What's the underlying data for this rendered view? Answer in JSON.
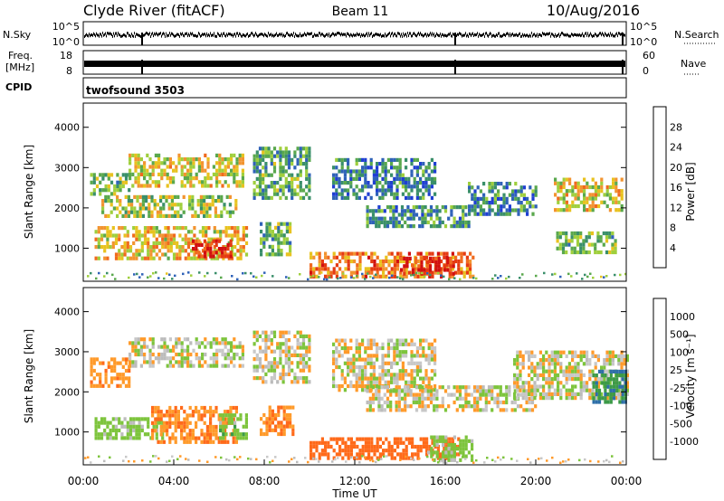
{
  "header": {
    "title": "Clyde River (fitACF)",
    "beam": "Beam 11",
    "date": "10/Aug/2016"
  },
  "strips": {
    "nsky": {
      "label": "N.Sky",
      "tick_top": "10^5",
      "tick_bottom": "10^0"
    },
    "nsearch": {
      "label": "N.Search",
      "tick_top": "10^5",
      "tick_bottom": "10^0"
    },
    "freq": {
      "label_line1": "Freq.",
      "label_line2": "[MHz]",
      "tick_top": "18",
      "tick_bottom": "8"
    },
    "nave": {
      "label": "Nave",
      "tick_top": "60",
      "tick_bottom": "0"
    },
    "cpid": {
      "label": "CPID",
      "value": "twofsound 3503"
    }
  },
  "colors": {
    "power": [
      "#1f3fd2",
      "#2f62b8",
      "#3a8f6a",
      "#5aa84d",
      "#9fcf3d",
      "#e8c21f",
      "#f29430",
      "#f06a1e",
      "#e53a12",
      "#d11010"
    ],
    "velocity": [
      "#ff1a10",
      "#ff6a1a",
      "#ff9a2a",
      "#c8c8c8",
      "#bcbcbc",
      "#7dc43c",
      "#3c9a48",
      "#2e6fa8",
      "#1f3fd2"
    ]
  },
  "chart_data": [
    {
      "type": "heatmap",
      "panel": "power",
      "ylabel": "Slant Range [km]",
      "xlabel": "",
      "ylim": [
        180,
        4600
      ],
      "xlim": [
        "00:00",
        "24:00"
      ],
      "yticks": [
        "1000",
        "2000",
        "3000",
        "4000"
      ],
      "colorbar": {
        "label": "Power [dB]",
        "ticks": [
          "4",
          "8",
          "12",
          "16",
          "20",
          "24",
          "28"
        ]
      },
      "regions": [
        {
          "t": [
            0.3,
            2.0
          ],
          "r": [
            2300,
            2800
          ],
          "level": 12
        },
        {
          "t": [
            2.0,
            7.0
          ],
          "r": [
            2500,
            3300
          ],
          "level": 16
        },
        {
          "t": [
            0.8,
            6.8
          ],
          "r": [
            1750,
            2250
          ],
          "level": 14
        },
        {
          "t": [
            0.5,
            7.2
          ],
          "r": [
            700,
            1500
          ],
          "level": 18
        },
        {
          "t": [
            4.8,
            6.5
          ],
          "r": [
            750,
            1200
          ],
          "level": 27
        },
        {
          "t": [
            7.5,
            10.0
          ],
          "r": [
            2200,
            3500
          ],
          "level": 10
        },
        {
          "t": [
            7.8,
            9.2
          ],
          "r": [
            800,
            1600
          ],
          "level": 11
        },
        {
          "t": [
            10.0,
            17.2
          ],
          "r": [
            250,
            850
          ],
          "level": 22
        },
        {
          "t": [
            14.0,
            16.4
          ],
          "r": [
            320,
            700
          ],
          "level": 28
        },
        {
          "t": [
            11.0,
            15.5
          ],
          "r": [
            2200,
            3200
          ],
          "level": 7
        },
        {
          "t": [
            12.5,
            17.0
          ],
          "r": [
            1500,
            2000
          ],
          "level": 9
        },
        {
          "t": [
            17.0,
            20.0
          ],
          "r": [
            1800,
            2600
          ],
          "level": 8
        },
        {
          "t": [
            20.8,
            23.8
          ],
          "r": [
            1900,
            2700
          ],
          "level": 17
        },
        {
          "t": [
            20.9,
            23.5
          ],
          "r": [
            850,
            1400
          ],
          "level": 12
        }
      ]
    },
    {
      "type": "heatmap",
      "panel": "velocity",
      "ylabel": "Slant Range [km]",
      "xlabel": "Time UT",
      "ylim": [
        180,
        4600
      ],
      "xlim": [
        "00:00",
        "24:00"
      ],
      "xticks": [
        "00:00",
        "04:00",
        "08:00",
        "12:00",
        "16:00",
        "20:00",
        "00:00"
      ],
      "yticks": [
        "1000",
        "2000",
        "3000",
        "4000"
      ],
      "colorbar": {
        "label": "Velocity [m s⁻¹]",
        "ticks": [
          "1000",
          "500",
          "100",
          "25",
          "-25",
          "-100",
          "-500",
          "-1000"
        ]
      },
      "regions": [
        {
          "t": [
            0.3,
            2.0
          ],
          "r": [
            2100,
            2800
          ],
          "v": -200
        },
        {
          "t": [
            2.0,
            7.0
          ],
          "r": [
            2600,
            3300
          ],
          "v": 0
        },
        {
          "t": [
            0.5,
            3.5
          ],
          "r": [
            800,
            1300
          ],
          "v": 150
        },
        {
          "t": [
            3.0,
            6.8
          ],
          "r": [
            700,
            1600
          ],
          "v": -250
        },
        {
          "t": [
            6.0,
            7.2
          ],
          "r": [
            800,
            1400
          ],
          "v": 200
        },
        {
          "t": [
            7.5,
            10.0
          ],
          "r": [
            2200,
            3500
          ],
          "v": 0
        },
        {
          "t": [
            7.8,
            9.3
          ],
          "r": [
            900,
            1600
          ],
          "v": -300
        },
        {
          "t": [
            10.0,
            16.6
          ],
          "r": [
            300,
            850
          ],
          "v": -600
        },
        {
          "t": [
            15.2,
            17.2
          ],
          "r": [
            250,
            850
          ],
          "v": 150
        },
        {
          "t": [
            11.0,
            15.5
          ],
          "r": [
            2000,
            3300
          ],
          "v": 0
        },
        {
          "t": [
            12.5,
            20.0
          ],
          "r": [
            1500,
            2100
          ],
          "v": 0
        },
        {
          "t": [
            19.0,
            24.0
          ],
          "r": [
            1800,
            3000
          ],
          "v": 0
        },
        {
          "t": [
            22.5,
            24.0
          ],
          "r": [
            1700,
            2500
          ],
          "v": 700
        }
      ]
    }
  ]
}
